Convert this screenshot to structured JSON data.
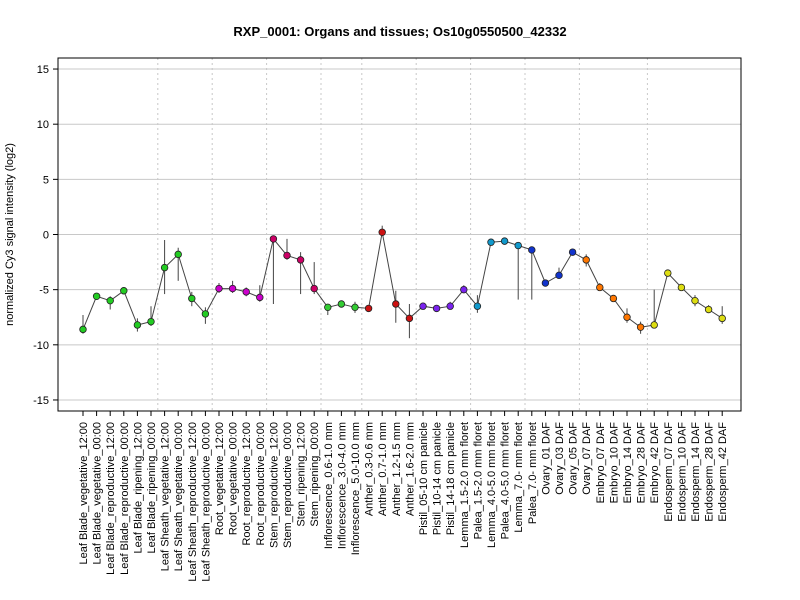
{
  "chart_data": {
    "type": "line",
    "title": "RXP_0001: Organs and tissues; Os10g0550500_42332",
    "xlabel": "",
    "ylabel": "normalized Cy3 signal intensity (log2)",
    "ylim": [
      -16,
      16
    ],
    "yticks": [
      -15,
      -10,
      -5,
      0,
      5,
      10,
      15
    ],
    "grid": true,
    "categories": [
      "Leaf Blade_vegetative_12:00",
      "Leaf Blade_vegetative_00:00",
      "Leaf Blade_reproductive_12:00",
      "Leaf Blade_reproductive_00:00",
      "Leaf Blade_ripening_12:00",
      "Leaf Blade_ripening_00:00",
      "Leaf Sheath_vegetative_12:00",
      "Leaf Sheath_vegetative_00:00",
      "Leaf Sheath_reproductive_12:00",
      "Leaf Sheath_reproductive_00:00",
      "Root_vegetative_12:00",
      "Root_vegetative_00:00",
      "Root_reproductive_12:00",
      "Root_reproductive_00:00",
      "Stem_reproductive_12:00",
      "Stem_reproductive_00:00",
      "Stem_ripening_12:00",
      "Stem_ripening_00:00",
      "Inflorescence_0.6-1.0 mm",
      "Inflorescence_3.0-4.0 mm",
      "Inflorescence_5.0-10.0 mm",
      "Anther_0.3-0.6 mm",
      "Anther_0.7-1.0 mm",
      "Anther_1.2-1.5 mm",
      "Anther_1.6-2.0 mm",
      "Pistil_05-10 cm panicle",
      "Pistil_10-14 cm panicle",
      "Pistil_14-18 cm panicle",
      "Lemma_1.5-2.0 mm floret",
      "Palea_1.5-2.0 mm floret",
      "Lemma_4.0-5.0 mm floret",
      "Palea_4.0-5.0 mm floret",
      "Lemma_7.0- mm floret",
      "Palea_7.0- mm floret",
      "Ovary_01 DAF",
      "Ovary_03 DAF",
      "Ovary_05 DAF",
      "Ovary_07 DAF",
      "Embryo_07 DAF",
      "Embryo_10 DAF",
      "Embryo_14 DAF",
      "Embryo_28 DAF",
      "Embryo_42 DAF",
      "Endosperm_07 DAF",
      "Endosperm_10 DAF",
      "Endosperm_14 DAF",
      "Endosperm_28 DAF",
      "Endosperm_42 DAF"
    ],
    "values": [
      -8.6,
      -5.6,
      -6.0,
      -5.1,
      -8.2,
      -7.9,
      -3.0,
      -1.8,
      -5.8,
      -7.2,
      -4.9,
      -4.9,
      -5.2,
      -5.7,
      -0.4,
      -1.9,
      -2.3,
      -4.9,
      -6.6,
      -6.3,
      -6.6,
      -6.7,
      0.2,
      -6.3,
      -7.6,
      -6.5,
      -6.7,
      -6.5,
      -5.0,
      -6.5,
      -0.7,
      -0.6,
      -1.0,
      -1.4,
      -4.4,
      -3.7,
      -1.6,
      -2.3,
      -4.8,
      -5.8,
      -7.5,
      -8.4,
      -8.2,
      -3.5,
      -4.8,
      -6.0,
      -6.8,
      -7.6
    ],
    "error_low": [
      -9.0,
      -5.9,
      -6.8,
      -5.2,
      -8.8,
      -8.3,
      -5.4,
      -4.2,
      -6.5,
      -8.1,
      -5.3,
      -5.3,
      -5.6,
      -6.1,
      -6.3,
      -2.3,
      -5.4,
      -5.4,
      -7.3,
      -6.6,
      -7.1,
      -6.9,
      -0.1,
      -8.0,
      -9.4,
      -6.6,
      -6.9,
      -6.8,
      -5.2,
      -7.1,
      -0.9,
      -0.8,
      -5.9,
      -5.9,
      -4.6,
      -4.0,
      -1.7,
      -2.9,
      -4.9,
      -5.9,
      -8.0,
      -9.0,
      -8.4,
      -3.7,
      -5.0,
      -6.5,
      -7.1,
      -8.1
    ],
    "error_high": [
      -7.3,
      -5.4,
      -5.6,
      -5.0,
      -7.6,
      -6.5,
      -0.5,
      -1.2,
      -5.2,
      -6.6,
      -4.4,
      -4.2,
      -4.8,
      -4.6,
      -0.3,
      -0.4,
      -1.6,
      -2.5,
      -6.4,
      -6.0,
      -6.1,
      -6.5,
      0.8,
      -5.1,
      -6.3,
      -6.3,
      -6.4,
      -6.1,
      -4.6,
      -5.5,
      -0.5,
      -0.4,
      -0.8,
      -1.1,
      -4.1,
      -3.0,
      -1.4,
      -1.8,
      -4.4,
      -5.5,
      -6.7,
      -7.9,
      -5.0,
      -3.3,
      -4.5,
      -5.5,
      -6.4,
      -6.5
    ],
    "group_sizes": [
      6,
      4,
      4,
      4,
      3,
      4,
      4,
      4,
      4,
      5,
      6
    ],
    "group_colors": [
      "#22cc22",
      "#22cc22",
      "#cc00cc",
      "#cc0066",
      "#33cc33",
      "#cc1111",
      "#7a22ee",
      "#1199cc",
      "#1133cc",
      "#ff7700",
      "#dddd11"
    ]
  }
}
